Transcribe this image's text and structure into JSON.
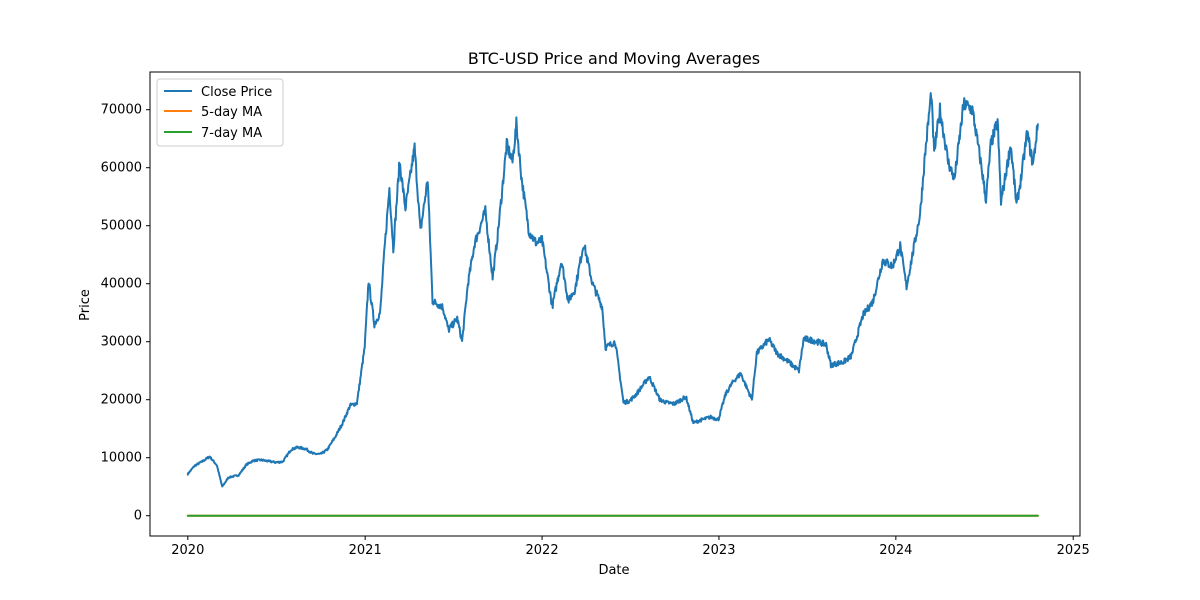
{
  "chart_data": {
    "type": "line",
    "title": "BTC-USD Price and Moving Averages",
    "xlabel": "Date",
    "ylabel": "Price",
    "xlim": [
      "2019-10-15",
      "2025-01-15"
    ],
    "ylim": [
      -3500,
      76500
    ],
    "x_ticks": [
      "2020-01-01",
      "2021-01-01",
      "2022-01-01",
      "2023-01-01",
      "2024-01-01",
      "2025-01-01"
    ],
    "x_tick_labels": [
      "2020",
      "2021",
      "2022",
      "2023",
      "2024",
      "2025"
    ],
    "y_ticks": [
      0,
      10000,
      20000,
      30000,
      40000,
      50000,
      60000,
      70000
    ],
    "y_tick_labels": [
      "0",
      "10000",
      "20000",
      "30000",
      "40000",
      "50000",
      "60000",
      "70000"
    ],
    "grid": false,
    "legend_position": "top-left",
    "series": [
      {
        "name": "Close Price",
        "color": "#1f77b4",
        "points": [
          [
            "2020-01-01",
            7200
          ],
          [
            "2020-01-15",
            8600
          ],
          [
            "2020-02-01",
            9400
          ],
          [
            "2020-02-15",
            10200
          ],
          [
            "2020-03-01",
            8700
          ],
          [
            "2020-03-12",
            5000
          ],
          [
            "2020-03-25",
            6600
          ],
          [
            "2020-04-15",
            7000
          ],
          [
            "2020-05-01",
            8800
          ],
          [
            "2020-05-15",
            9500
          ],
          [
            "2020-06-01",
            9600
          ],
          [
            "2020-06-15",
            9400
          ],
          [
            "2020-07-01",
            9200
          ],
          [
            "2020-07-15",
            9300
          ],
          [
            "2020-08-01",
            11400
          ],
          [
            "2020-08-15",
            11800
          ],
          [
            "2020-09-01",
            11500
          ],
          [
            "2020-09-15",
            10700
          ],
          [
            "2020-10-01",
            10600
          ],
          [
            "2020-10-15",
            11400
          ],
          [
            "2020-11-01",
            13700
          ],
          [
            "2020-11-15",
            15900
          ],
          [
            "2020-12-01",
            19000
          ],
          [
            "2020-12-15",
            19400
          ],
          [
            "2020-12-31",
            29000
          ],
          [
            "2021-01-08",
            40500
          ],
          [
            "2021-01-20",
            33000
          ],
          [
            "2021-02-01",
            35000
          ],
          [
            "2021-02-10",
            46000
          ],
          [
            "2021-02-20",
            56500
          ],
          [
            "2021-02-28",
            46000
          ],
          [
            "2021-03-13",
            61000
          ],
          [
            "2021-03-25",
            53000
          ],
          [
            "2021-04-13",
            63500
          ],
          [
            "2021-04-25",
            49000
          ],
          [
            "2021-05-10",
            58000
          ],
          [
            "2021-05-20",
            37000
          ],
          [
            "2021-06-10",
            36000
          ],
          [
            "2021-06-22",
            32000
          ],
          [
            "2021-07-10",
            34000
          ],
          [
            "2021-07-20",
            30000
          ],
          [
            "2021-08-01",
            40000
          ],
          [
            "2021-08-15",
            47000
          ],
          [
            "2021-09-06",
            52500
          ],
          [
            "2021-09-21",
            41000
          ],
          [
            "2021-10-01",
            48000
          ],
          [
            "2021-10-20",
            64000
          ],
          [
            "2021-11-01",
            61000
          ],
          [
            "2021-11-09",
            67500
          ],
          [
            "2021-11-20",
            58000
          ],
          [
            "2021-12-05",
            49000
          ],
          [
            "2021-12-20",
            47000
          ],
          [
            "2022-01-01",
            47500
          ],
          [
            "2022-01-22",
            36000
          ],
          [
            "2022-02-10",
            44000
          ],
          [
            "2022-02-24",
            37000
          ],
          [
            "2022-03-10",
            39000
          ],
          [
            "2022-03-28",
            47000
          ],
          [
            "2022-04-15",
            40000
          ],
          [
            "2022-05-05",
            36000
          ],
          [
            "2022-05-12",
            29000
          ],
          [
            "2022-06-01",
            30000
          ],
          [
            "2022-06-18",
            19500
          ],
          [
            "2022-07-01",
            19800
          ],
          [
            "2022-07-15",
            21000
          ],
          [
            "2022-08-10",
            24000
          ],
          [
            "2022-09-01",
            20000
          ],
          [
            "2022-09-15",
            19500
          ],
          [
            "2022-10-01",
            19300
          ],
          [
            "2022-10-25",
            20500
          ],
          [
            "2022-11-09",
            16000
          ],
          [
            "2022-11-25",
            16500
          ],
          [
            "2022-12-15",
            17000
          ],
          [
            "2022-12-31",
            16600
          ],
          [
            "2023-01-15",
            21000
          ],
          [
            "2023-01-31",
            23200
          ],
          [
            "2023-02-15",
            24500
          ],
          [
            "2023-03-10",
            20000
          ],
          [
            "2023-03-20",
            28000
          ],
          [
            "2023-04-14",
            30400
          ],
          [
            "2023-05-01",
            28000
          ],
          [
            "2023-05-25",
            26500
          ],
          [
            "2023-06-15",
            25000
          ],
          [
            "2023-06-25",
            30500
          ],
          [
            "2023-07-15",
            30200
          ],
          [
            "2023-08-10",
            29500
          ],
          [
            "2023-08-20",
            26000
          ],
          [
            "2023-09-15",
            26500
          ],
          [
            "2023-10-01",
            27500
          ],
          [
            "2023-10-25",
            34500
          ],
          [
            "2023-11-15",
            37000
          ],
          [
            "2023-12-05",
            44000
          ],
          [
            "2023-12-25",
            43000
          ],
          [
            "2024-01-10",
            46500
          ],
          [
            "2024-01-23",
            39500
          ],
          [
            "2024-02-10",
            47500
          ],
          [
            "2024-02-20",
            52000
          ],
          [
            "2024-03-01",
            62000
          ],
          [
            "2024-03-14",
            73000
          ],
          [
            "2024-03-20",
            62500
          ],
          [
            "2024-04-01",
            70000
          ],
          [
            "2024-04-18",
            61000
          ],
          [
            "2024-05-01",
            58000
          ],
          [
            "2024-05-20",
            71000
          ],
          [
            "2024-06-07",
            70000
          ],
          [
            "2024-06-25",
            60500
          ],
          [
            "2024-07-05",
            54500
          ],
          [
            "2024-07-15",
            64000
          ],
          [
            "2024-07-29",
            68000
          ],
          [
            "2024-08-05",
            54000
          ],
          [
            "2024-08-25",
            64000
          ],
          [
            "2024-09-06",
            53500
          ],
          [
            "2024-09-15",
            58000
          ],
          [
            "2024-09-28",
            66000
          ],
          [
            "2024-10-10",
            60500
          ],
          [
            "2024-10-20",
            67500
          ]
        ]
      },
      {
        "name": "5-day MA",
        "color": "#ff7f0e",
        "points": [
          [
            "2020-01-01",
            0
          ],
          [
            "2024-10-20",
            0
          ]
        ]
      },
      {
        "name": "7-day MA",
        "color": "#2ca02c",
        "points": [
          [
            "2020-01-01",
            0
          ],
          [
            "2024-10-20",
            0
          ]
        ]
      }
    ]
  }
}
